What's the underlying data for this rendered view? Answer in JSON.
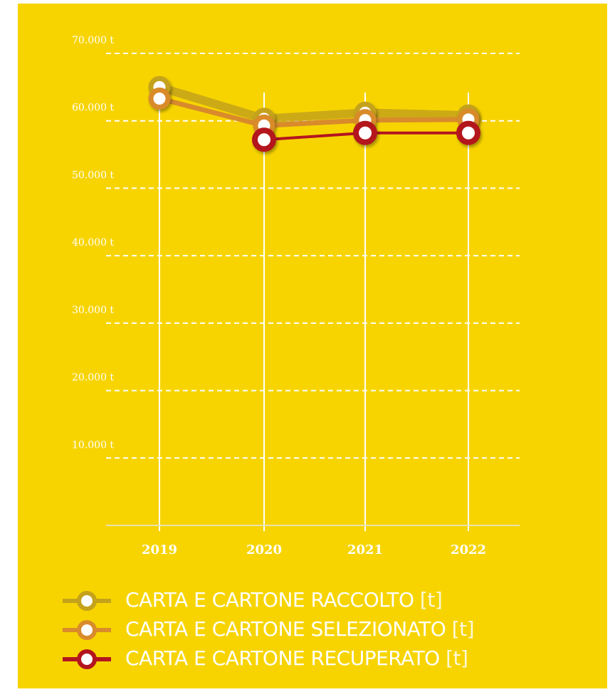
{
  "chart_data": {
    "type": "line",
    "x": [
      "2019",
      "2020",
      "2021",
      "2022"
    ],
    "y_ticks": [
      "70.000  t",
      "60.000  t",
      "50.000  t",
      "40.000  t",
      "30.000  t",
      "20.000  t",
      "10.000  t"
    ],
    "y_tick_values": [
      70000,
      60000,
      50000,
      40000,
      30000,
      20000,
      10000
    ],
    "ylim": [
      0,
      70000
    ],
    "grid": "horizontal dashed",
    "series": [
      {
        "name": "CARTA E CARTONE RACCOLTO",
        "unit": "[t]",
        "color": "#c4a21a",
        "values": [
          65000,
          60300,
          61200,
          60800
        ]
      },
      {
        "name": "CARTA E CARTONE SELEZIONATO",
        "unit": "[t]",
        "color": "#d98b2b",
        "values": [
          63300,
          59300,
          60100,
          60200
        ]
      },
      {
        "name": "CARTA E CARTONE RECUPERATO",
        "unit": "[t]",
        "color": "#b3151f",
        "values": null
      }
    ],
    "recuperato_values": [
      null,
      57200,
      58200,
      58200
    ]
  },
  "colors": {
    "background": "#f7d400",
    "grid": "#ffffff",
    "text": "#ffffff"
  }
}
